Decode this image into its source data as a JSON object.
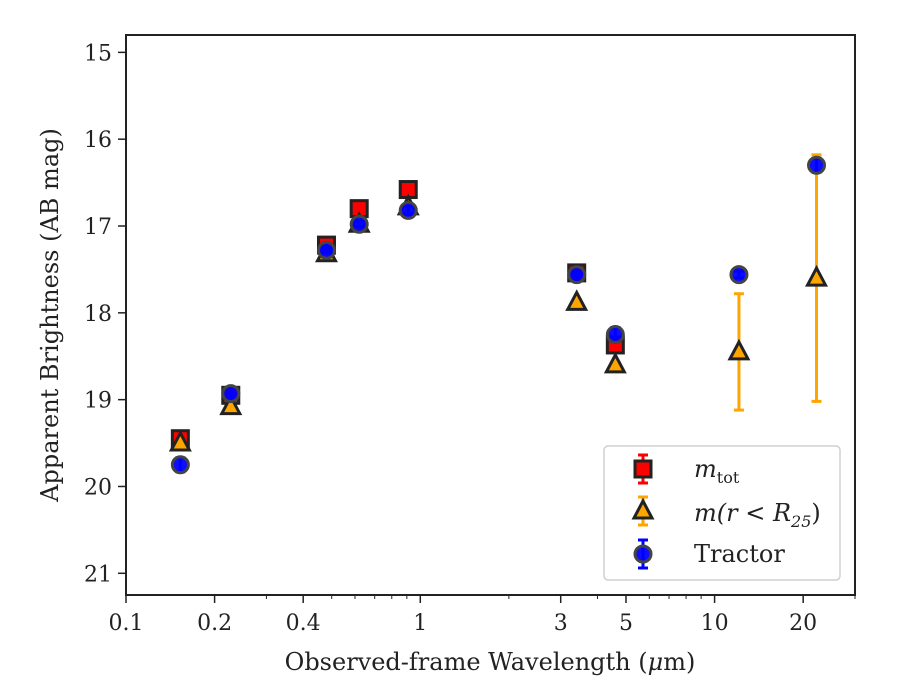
{
  "chart_data": {
    "type": "scatter",
    "xlabel_prefix": "Observed-frame Wavelength (",
    "xlabel_mu": "μ",
    "xlabel_suffix": "m)",
    "ylabel": "Apparent Brightness (AB mag)",
    "xscale": "log",
    "xlim": [
      0.1,
      30
    ],
    "ylim": [
      21.25,
      14.8
    ],
    "y_inverted": true,
    "x_ticks": [
      0.1,
      0.2,
      0.4,
      1,
      3,
      5,
      10,
      20
    ],
    "x_tick_labels": [
      "0.1",
      "0.2",
      "0.4",
      "1",
      "3",
      "5",
      "10",
      "20"
    ],
    "y_ticks": [
      15,
      16,
      17,
      18,
      19,
      20,
      21
    ],
    "y_tick_labels": [
      "15",
      "16",
      "17",
      "18",
      "19",
      "20",
      "21"
    ],
    "grid": false,
    "legend_position": "lower-right",
    "series": [
      {
        "name": "m_tot",
        "legend_main": "m",
        "legend_sub": "tot",
        "marker": "square",
        "color": "#ff0000",
        "edge_color": "#222222",
        "error_color": "#ff0000",
        "points": [
          {
            "x": 0.153,
            "y": 19.45,
            "err": 0.05
          },
          {
            "x": 0.227,
            "y": 18.95,
            "err": 0.05
          },
          {
            "x": 0.48,
            "y": 17.22,
            "err": 0.04
          },
          {
            "x": 0.62,
            "y": 16.8,
            "err": 0.04
          },
          {
            "x": 0.91,
            "y": 16.58,
            "err": 0.04
          },
          {
            "x": 3.4,
            "y": 17.54,
            "err": 0.04
          },
          {
            "x": 4.6,
            "y": 18.37,
            "err": 0.05
          }
        ]
      },
      {
        "name": "m(r < R_25)",
        "legend_main": "m(r < R",
        "legend_sub": "25",
        "legend_end": ")",
        "marker": "triangle",
        "color": "#ffa500",
        "edge_color": "#222222",
        "error_color": "#ffa500",
        "points": [
          {
            "x": 0.153,
            "y": 19.5,
            "err": 0.03
          },
          {
            "x": 0.227,
            "y": 19.08,
            "err": 0.03
          },
          {
            "x": 0.48,
            "y": 17.32,
            "err": 0.03
          },
          {
            "x": 0.62,
            "y": 16.98,
            "err": 0.03
          },
          {
            "x": 0.91,
            "y": 16.78,
            "err": 0.03
          },
          {
            "x": 3.4,
            "y": 17.88,
            "err": 0.03
          },
          {
            "x": 4.6,
            "y": 18.6,
            "err": 0.03
          },
          {
            "x": 12.1,
            "y": 18.45,
            "err_low": 0.67,
            "err_high": 0.67
          },
          {
            "x": 22.2,
            "y": 17.6,
            "err_low": 1.42,
            "err_high": 1.42
          }
        ]
      },
      {
        "name": "Tractor",
        "legend_main": "Tractor",
        "marker": "circle",
        "color": "#0000ff",
        "edge_color": "#444444",
        "error_color": "#0000ff",
        "points": [
          {
            "x": 0.153,
            "y": 19.75,
            "err": 0.08
          },
          {
            "x": 0.227,
            "y": 18.93,
            "err": 0.06
          },
          {
            "x": 0.48,
            "y": 17.28,
            "err": 0.03
          },
          {
            "x": 0.62,
            "y": 16.98,
            "err": 0.03
          },
          {
            "x": 0.91,
            "y": 16.82,
            "err": 0.05
          },
          {
            "x": 3.4,
            "y": 17.56,
            "err": 0.03
          },
          {
            "x": 4.6,
            "y": 18.25,
            "err": 0.08
          },
          {
            "x": 12.1,
            "y": 17.56,
            "err": 0.04
          },
          {
            "x": 22.2,
            "y": 16.3,
            "err": 0.08
          }
        ]
      }
    ]
  }
}
